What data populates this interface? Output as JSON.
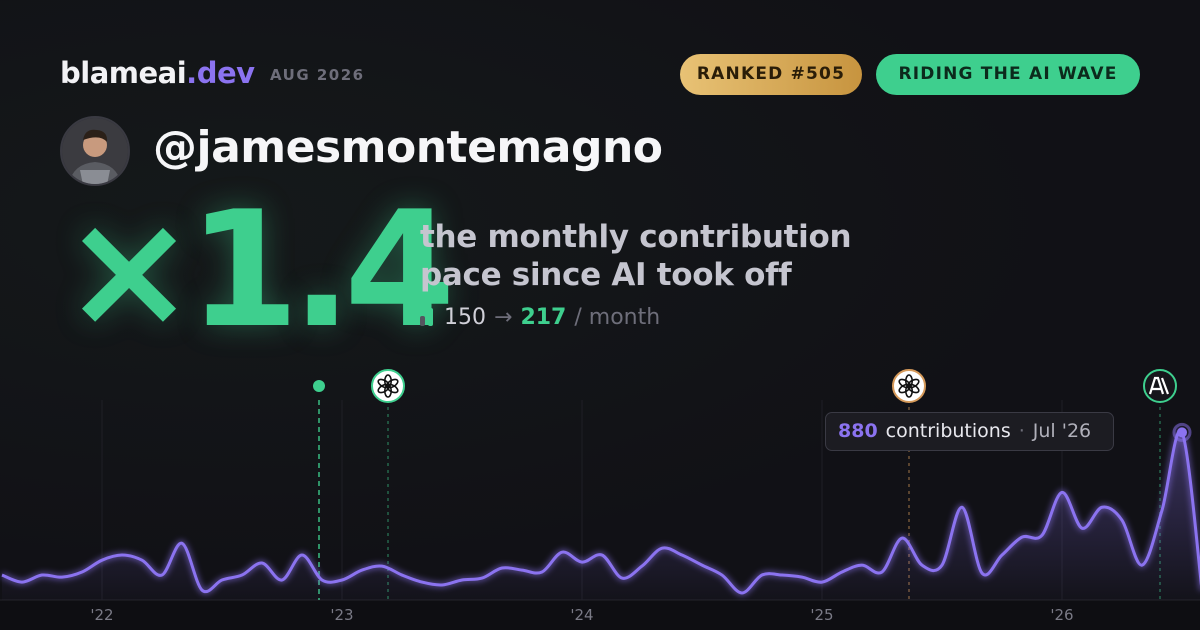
{
  "header": {
    "site": "blameai",
    "site_suffix": ".dev",
    "date": "AUG 2026",
    "badges": [
      "RANKED #505",
      "RIDING THE AI WAVE"
    ],
    "handle": "@jamesmontemagno",
    "multiplier": "×1.4",
    "description": [
      "the monthly contribution",
      "pace since AI took off"
    ],
    "stats": {
      "before": "150",
      "arrow": "→",
      "after": "217",
      "unit": "/ month"
    }
  },
  "chart_data": {
    "type": "line",
    "categories": [
      null,
      null,
      null,
      null,
      null,
      "'22",
      null,
      null,
      null,
      null,
      null,
      null,
      null,
      null,
      null,
      null,
      null,
      "'23",
      null,
      null,
      null,
      null,
      null,
      null,
      null,
      null,
      null,
      null,
      null,
      "'24",
      null,
      null,
      null,
      null,
      null,
      null,
      null,
      null,
      null,
      null,
      null,
      "'25",
      null,
      null,
      null,
      null,
      null,
      null,
      null,
      null,
      null,
      null,
      null,
      "'26",
      null,
      null,
      null,
      null,
      null,
      null,
      null
    ],
    "series": [
      {
        "name": "contributions",
        "color": "#8b73f0",
        "values": [
          131,
          94,
          131,
          120,
          147,
          209,
          236,
          209,
          131,
          298,
          52,
          105,
          131,
          194,
          105,
          236,
          105,
          105,
          157,
          178,
          131,
          94,
          79,
          105,
          115,
          168,
          157,
          147,
          251,
          199,
          236,
          115,
          178,
          272,
          236,
          183,
          131,
          37,
          131,
          131,
          120,
          94,
          147,
          183,
          147,
          325,
          183,
          183,
          487,
          141,
          236,
          330,
          340,
          565,
          377,
          487,
          419,
          183,
          471,
          880,
          52
        ]
      }
    ],
    "ylim": [
      0,
      1050
    ],
    "tooltip": {
      "index": 59,
      "label": "contributions",
      "separator": "·",
      "date": "Jul '26"
    }
  }
}
